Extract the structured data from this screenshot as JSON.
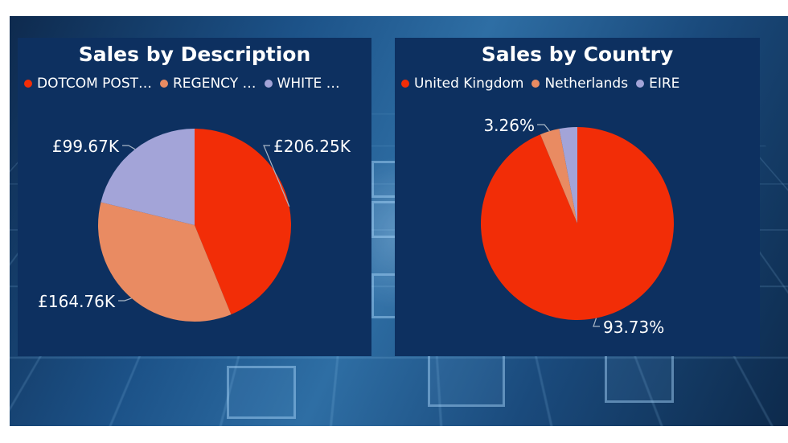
{
  "chart_data": [
    {
      "type": "pie",
      "title": "Sales by Description",
      "categories": [
        "DOTCOM POST…",
        "REGENCY …",
        "WHITE …"
      ],
      "values": [
        206.25,
        164.76,
        99.67
      ],
      "value_labels": [
        "£206.25K",
        "£164.76K",
        "£99.67K"
      ],
      "colors": [
        "#f22d07",
        "#e98b62",
        "#a3a4d8"
      ],
      "legend_position": "top-left"
    },
    {
      "type": "pie",
      "title": "Sales by Country",
      "categories": [
        "United Kingdom",
        "Netherlands",
        "EIRE"
      ],
      "values": [
        93.73,
        3.26,
        3.01
      ],
      "value_labels": [
        "93.73%",
        "3.26%",
        ""
      ],
      "colors": [
        "#f22d07",
        "#e98b62",
        "#a3a4d8"
      ],
      "legend_position": "top-left"
    }
  ]
}
